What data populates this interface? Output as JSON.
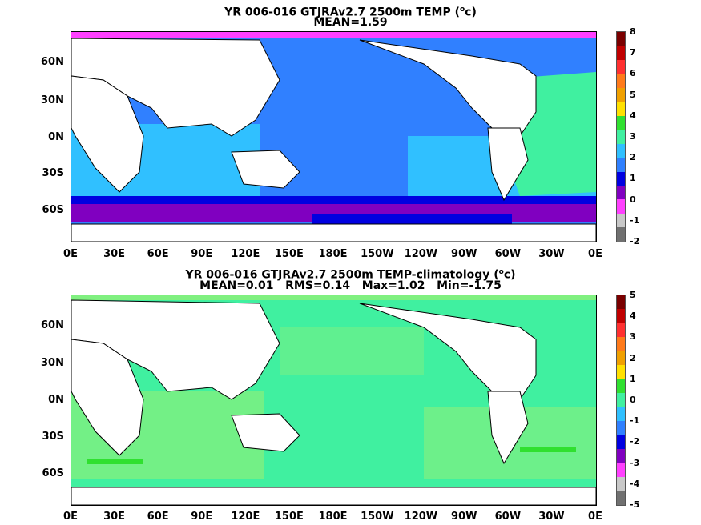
{
  "panels": [
    {
      "title_line1_a": "YR 006-016 GTJRAv2.7 2500m TEMP (",
      "title_line1_sup": "o",
      "title_line1_b": "c)",
      "title_line2": "MEAN=1.59",
      "lat_ticks": [
        "60N",
        "30N",
        "0N",
        "30S",
        "60S"
      ],
      "lon_ticks": [
        "0E",
        "30E",
        "60E",
        "90E",
        "120E",
        "150E",
        "180E",
        "150W",
        "120W",
        "90W",
        "60W",
        "30W",
        "0E"
      ],
      "colorbar_labels": [
        "8",
        "7",
        "6",
        "5",
        "4",
        "3",
        "2",
        "1",
        "0",
        "-1",
        "-2"
      ],
      "colorbar_colors": [
        "#7a0000",
        "#c00000",
        "#ff3030",
        "#ff7a1a",
        "#f0a000",
        "#ffe000",
        "#30e030",
        "#40f0a0",
        "#30c0ff",
        "#3080ff",
        "#0000e0",
        "#8000c0",
        "#ff40ff",
        "#c8c8c8",
        "#707070"
      ]
    },
    {
      "title_line1_a": "YR 006-016 GTJRAv2.7 2500m TEMP-climatology (",
      "title_line1_sup": "o",
      "title_line1_b": "c)",
      "title_line2": "MEAN=0.01   RMS=0.14   Max=1.02   Min=-1.75",
      "lat_ticks": [
        "60N",
        "30N",
        "0N",
        "30S",
        "60S"
      ],
      "lon_ticks": [
        "0E",
        "30E",
        "60E",
        "90E",
        "120E",
        "150E",
        "180E",
        "150W",
        "120W",
        "90W",
        "60W",
        "30W",
        "0E"
      ],
      "colorbar_labels": [
        "5",
        "4",
        "3",
        "2",
        "1",
        "0",
        "-1",
        "-2",
        "-3",
        "-4",
        "-5"
      ],
      "colorbar_colors": [
        "#7a0000",
        "#c00000",
        "#ff3030",
        "#ff7a1a",
        "#f0a000",
        "#ffe000",
        "#30e030",
        "#40f0a0",
        "#30c0ff",
        "#3080ff",
        "#0000e0",
        "#8000c0",
        "#ff40ff",
        "#c8c8c8",
        "#707070"
      ]
    }
  ]
}
